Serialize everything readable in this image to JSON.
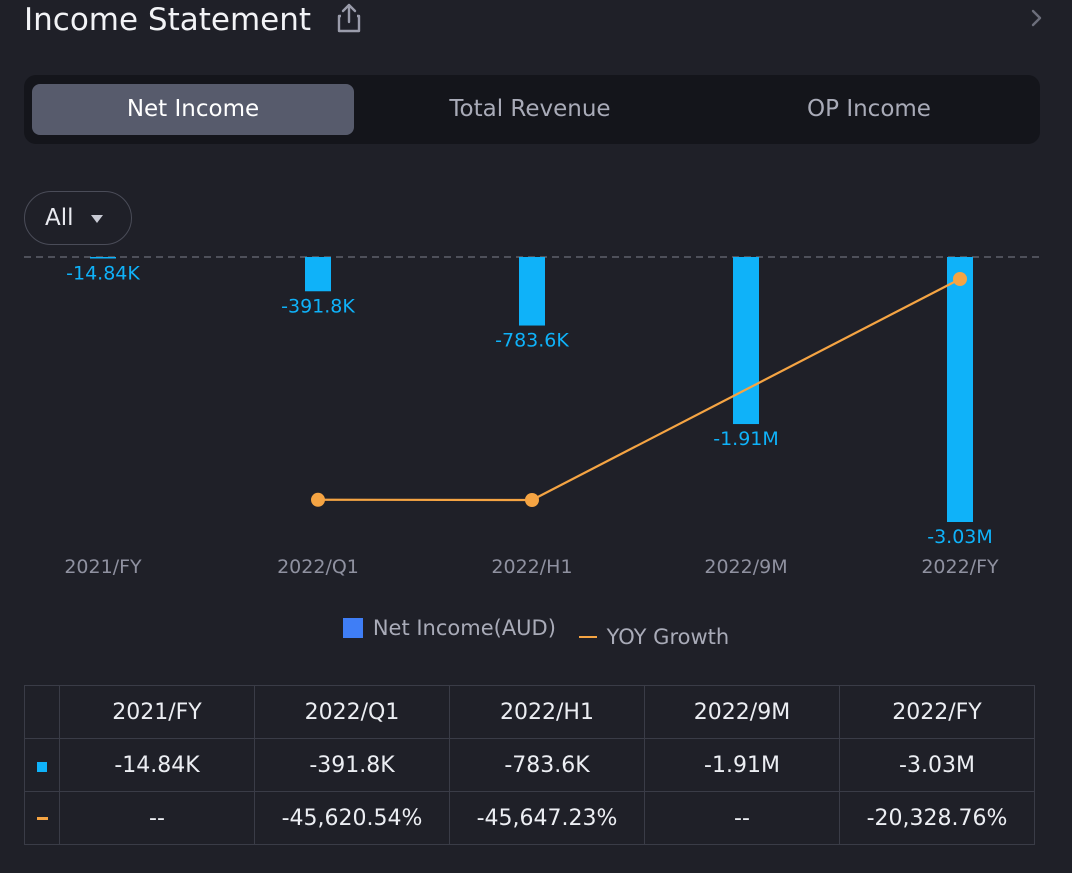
{
  "header": {
    "title": "Income Statement",
    "share_icon": "share-icon",
    "chevron_icon": "chevron-right-icon"
  },
  "tabs": [
    {
      "label": "Net Income",
      "active": true
    },
    {
      "label": "Total Revenue",
      "active": false
    },
    {
      "label": "OP Income",
      "active": false
    }
  ],
  "filter": {
    "label": "All"
  },
  "colors": {
    "bar": "#0fb2f9",
    "line": "#f5a443",
    "negative_text": "#ef5a57",
    "legend_bar": "#3f7ef6"
  },
  "chart_data": {
    "type": "bar",
    "categories": [
      "2021/FY",
      "2022/Q1",
      "2022/H1",
      "2022/9M",
      "2022/FY"
    ],
    "series": [
      {
        "name": "Net Income(AUD)",
        "type": "bar",
        "values": [
          -14840,
          -391800,
          -783600,
          -1910000,
          -3030000
        ],
        "labels": [
          "-14.84K",
          "-391.8K",
          "-783.6K",
          "-1.91M",
          "-3.03M"
        ]
      },
      {
        "name": "YOY Growth",
        "type": "line",
        "values": [
          null,
          -45620.54,
          -45647.23,
          null,
          -20328.76
        ]
      }
    ],
    "legend": [
      "Net Income(AUD)",
      "YOY Growth"
    ],
    "zero_line": "dashed",
    "legend_position": "bottom"
  },
  "table": {
    "headers": [
      "2021/FY",
      "2022/Q1",
      "2022/H1",
      "2022/9M",
      "2022/FY"
    ],
    "rows": [
      {
        "marker": "bar",
        "cells": [
          "-14.84K",
          "-391.8K",
          "-783.6K",
          "-1.91M",
          "-3.03M"
        ],
        "negative": [
          false,
          false,
          false,
          false,
          false
        ]
      },
      {
        "marker": "line",
        "cells": [
          "--",
          "-45,620.54%",
          "-45,647.23%",
          "--",
          "-20,328.76%"
        ],
        "negative": [
          false,
          true,
          true,
          false,
          true
        ]
      }
    ]
  }
}
